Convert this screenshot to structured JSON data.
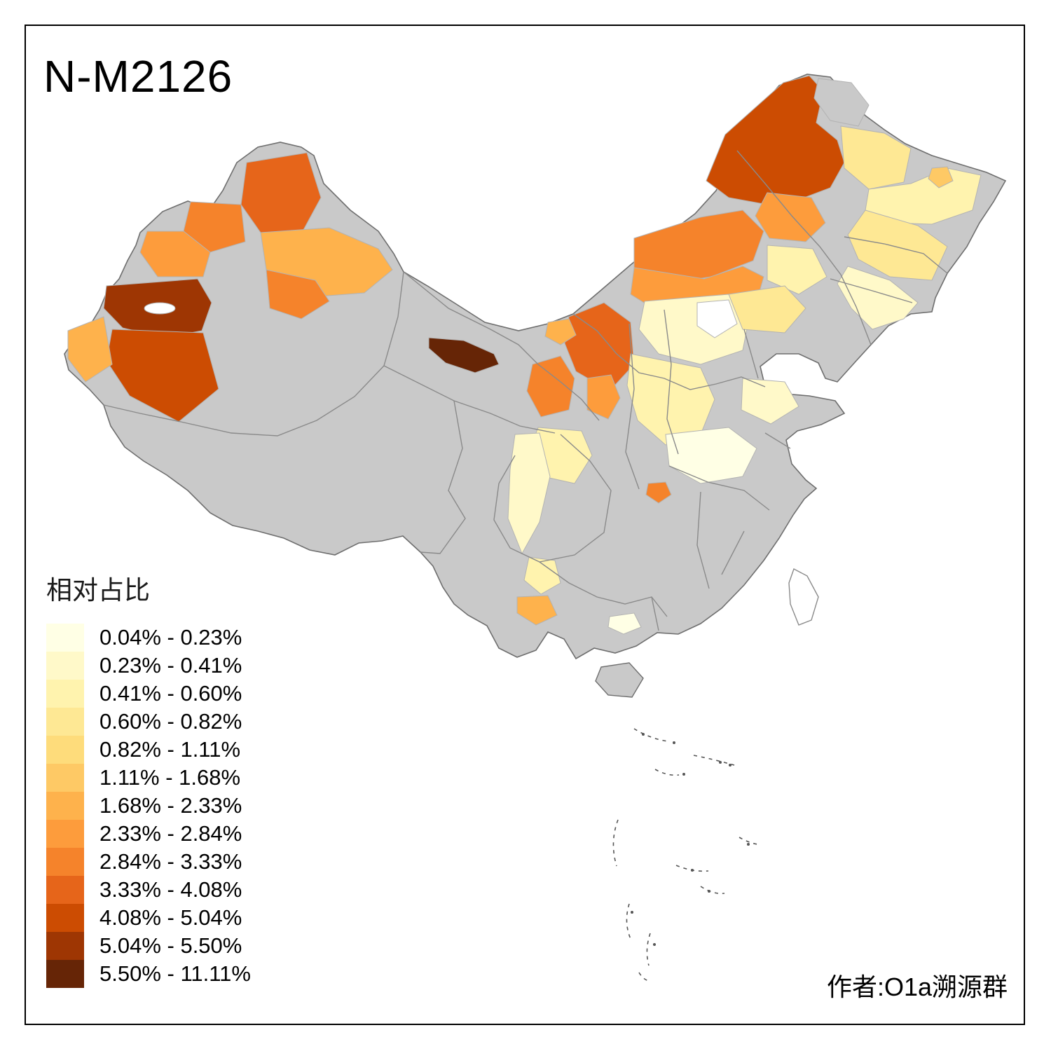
{
  "title": "N-M2126",
  "legend": {
    "title": "相对占比",
    "items": [
      {
        "label": "0.04% - 0.23%",
        "color": "#FFFFE5"
      },
      {
        "label": "0.23% - 0.41%",
        "color": "#FFF9C9"
      },
      {
        "label": "0.41% - 0.60%",
        "color": "#FFF3AE"
      },
      {
        "label": "0.60% - 0.82%",
        "color": "#FEE894"
      },
      {
        "label": "0.82% - 1.11%",
        "color": "#FEDC7B"
      },
      {
        "label": "1.11% - 1.68%",
        "color": "#FEC965"
      },
      {
        "label": "1.68% - 2.33%",
        "color": "#FEB24C"
      },
      {
        "label": "2.33% - 2.84%",
        "color": "#FD9C3C"
      },
      {
        "label": "2.84% - 3.33%",
        "color": "#F5832B"
      },
      {
        "label": "3.33% - 4.08%",
        "color": "#E6651A"
      },
      {
        "label": "4.08% - 5.04%",
        "color": "#CC4C02"
      },
      {
        "label": "5.04% - 5.50%",
        "color": "#9E3603"
      },
      {
        "label": "5.50% - 11.11%",
        "color": "#662506"
      }
    ]
  },
  "attribution": "作者:O1a溯源群",
  "map": {
    "no_data_color": "#C9C9C9",
    "island_fill": "#FFFFFF",
    "coast_stroke": "#6E6E6E",
    "province_stroke": "#8A8A8A",
    "patch_stroke": "#B3B3B3",
    "sea_mark_color": "#555555"
  }
}
